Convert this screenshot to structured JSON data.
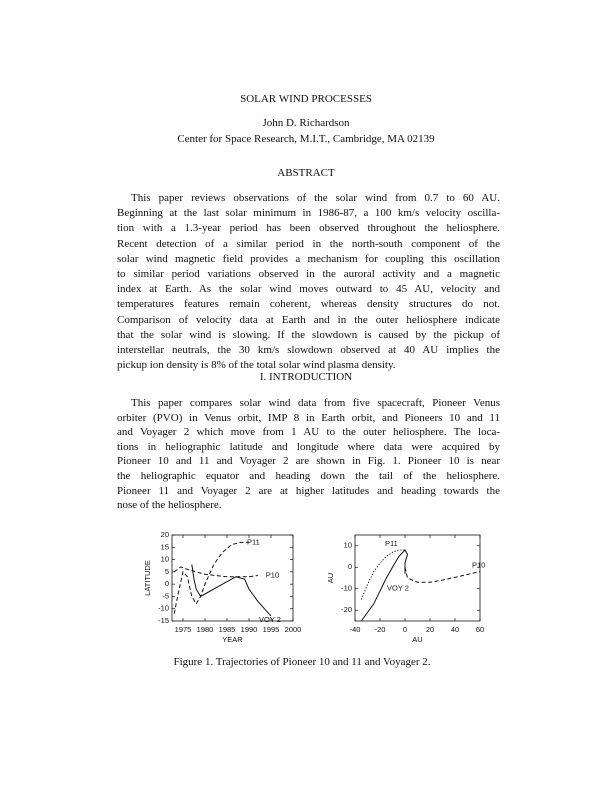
{
  "header": {
    "title": "SOLAR WIND PROCESSES",
    "author": "John D. Richardson",
    "affiliation": "Center for Space Research, M.I.T., Cambridge, MA 02139"
  },
  "abstract": {
    "heading": "ABSTRACT",
    "lines": [
      "This paper reviews observations of the solar wind from 0.7 to 60 AU.",
      "Beginning at the last solar minimum in 1986-87, a 100 km/s velocity oscilla-",
      "tion with a 1.3-year period has been observed throughout the heliosphere.",
      "Recent detection of a similar period in the north-south component of the",
      "solar wind magnetic field provides a mechanism for coupling this oscillation",
      "to similar period variations observed in the auroral activity and a magnetic",
      "index at Earth. As the solar wind moves outward to 45 AU, velocity and",
      "temperatures features remain coherent, whereas density structures do not.",
      "Comparison of velocity data at Earth and in the outer heliosphere indicate",
      "that the solar wind is slowing. If the slowdown is caused by the pickup of",
      "interstellar neutrals, the 30 km/s slowdown observed at 40 AU implies the",
      "pickup ion density is 8% of the total solar wind plasma density."
    ]
  },
  "introduction": {
    "heading": "I. INTRODUCTION",
    "lines": [
      "This paper compares solar wind data from five spacecraft, Pioneer Venus",
      "orbiter (PVO) in Venus orbit, IMP 8 in Earth orbit, and Pioneers 10 and 11",
      "and Voyager 2 which move from 1 AU to the outer heliosphere. The loca-",
      "tions in heliographic latitude and longitude where data were acquired by",
      "Pioneer 10 and 11 and Voyager 2 are shown in Fig. 1. Pioneer 10 is near",
      "the heliographic equator and heading down the tail of the heliosphere.",
      "Pioneer 11 and Voyager 2 are at higher latitudes and heading towards the",
      "nose of the heliosphere."
    ]
  },
  "figure": {
    "caption": "Figure 1. Trajectories of Pioneer 10 and 11 and Voyager 2."
  },
  "chart_data": [
    {
      "type": "line",
      "xlabel": "YEAR",
      "ylabel": "LATITUDE",
      "xlim": [
        1972.5,
        2000
      ],
      "xticks": [
        1975,
        1980,
        1985,
        1990,
        1995,
        2000
      ],
      "ylim": [
        -15,
        20
      ],
      "yticks": [
        20,
        15,
        10,
        5,
        0,
        -5,
        -10,
        -15
      ],
      "series": [
        {
          "name": "P11",
          "color": "#111111",
          "line_style": "dashed",
          "x": [
            1973,
            1974,
            1975,
            1976,
            1977,
            1978,
            1979,
            1980,
            1982,
            1984,
            1986,
            1988,
            1990
          ],
          "values": [
            -12,
            -3,
            5,
            3,
            -5,
            -8,
            -5,
            0,
            8,
            13,
            16,
            17,
            17
          ]
        },
        {
          "name": "P10",
          "color": "#111111",
          "line_style": "dashed",
          "x": [
            1973,
            1974.5,
            1976,
            1980,
            1985,
            1990,
            1992
          ],
          "values": [
            5,
            7,
            6,
            4,
            3,
            3,
            3.5
          ]
        },
        {
          "name": "VOY 2",
          "color": "#111111",
          "line_style": "solid",
          "x": [
            1977,
            1977.5,
            1978,
            1979,
            1980,
            1983,
            1987,
            1989,
            1990,
            1992,
            1995
          ],
          "values": [
            8,
            2,
            -2,
            -5,
            -4,
            -1,
            3,
            2,
            -2,
            -7,
            -13
          ]
        }
      ]
    },
    {
      "type": "line",
      "xlabel": "AU",
      "ylabel": "AU",
      "xlim": [
        -40,
        60
      ],
      "xticks": [
        -40,
        -20,
        0,
        20,
        40,
        60
      ],
      "ylim": [
        -25,
        15
      ],
      "yticks": [
        10,
        0,
        -10,
        -20
      ],
      "series": [
        {
          "name": "P11",
          "color": "#111111",
          "line_style": "dotted",
          "x": [
            -35,
            -30,
            -25,
            -20,
            -15,
            -10,
            -5,
            0
          ],
          "values": [
            -15,
            -8,
            -2,
            2,
            5,
            7,
            8,
            8
          ]
        },
        {
          "name": "P10",
          "color": "#111111",
          "line_style": "dashed",
          "x": [
            0,
            2,
            10,
            20,
            30,
            45,
            60
          ],
          "values": [
            0,
            -5,
            -7,
            -7,
            -6,
            -4,
            -2
          ]
        },
        {
          "name": "VOY 2",
          "color": "#111111",
          "line_style": "solid",
          "x": [
            -35,
            -25,
            -15,
            -10,
            -5,
            0,
            2,
            0,
            0
          ],
          "values": [
            -25,
            -17,
            -5,
            0,
            5,
            8,
            6,
            2,
            -3
          ]
        }
      ]
    }
  ]
}
